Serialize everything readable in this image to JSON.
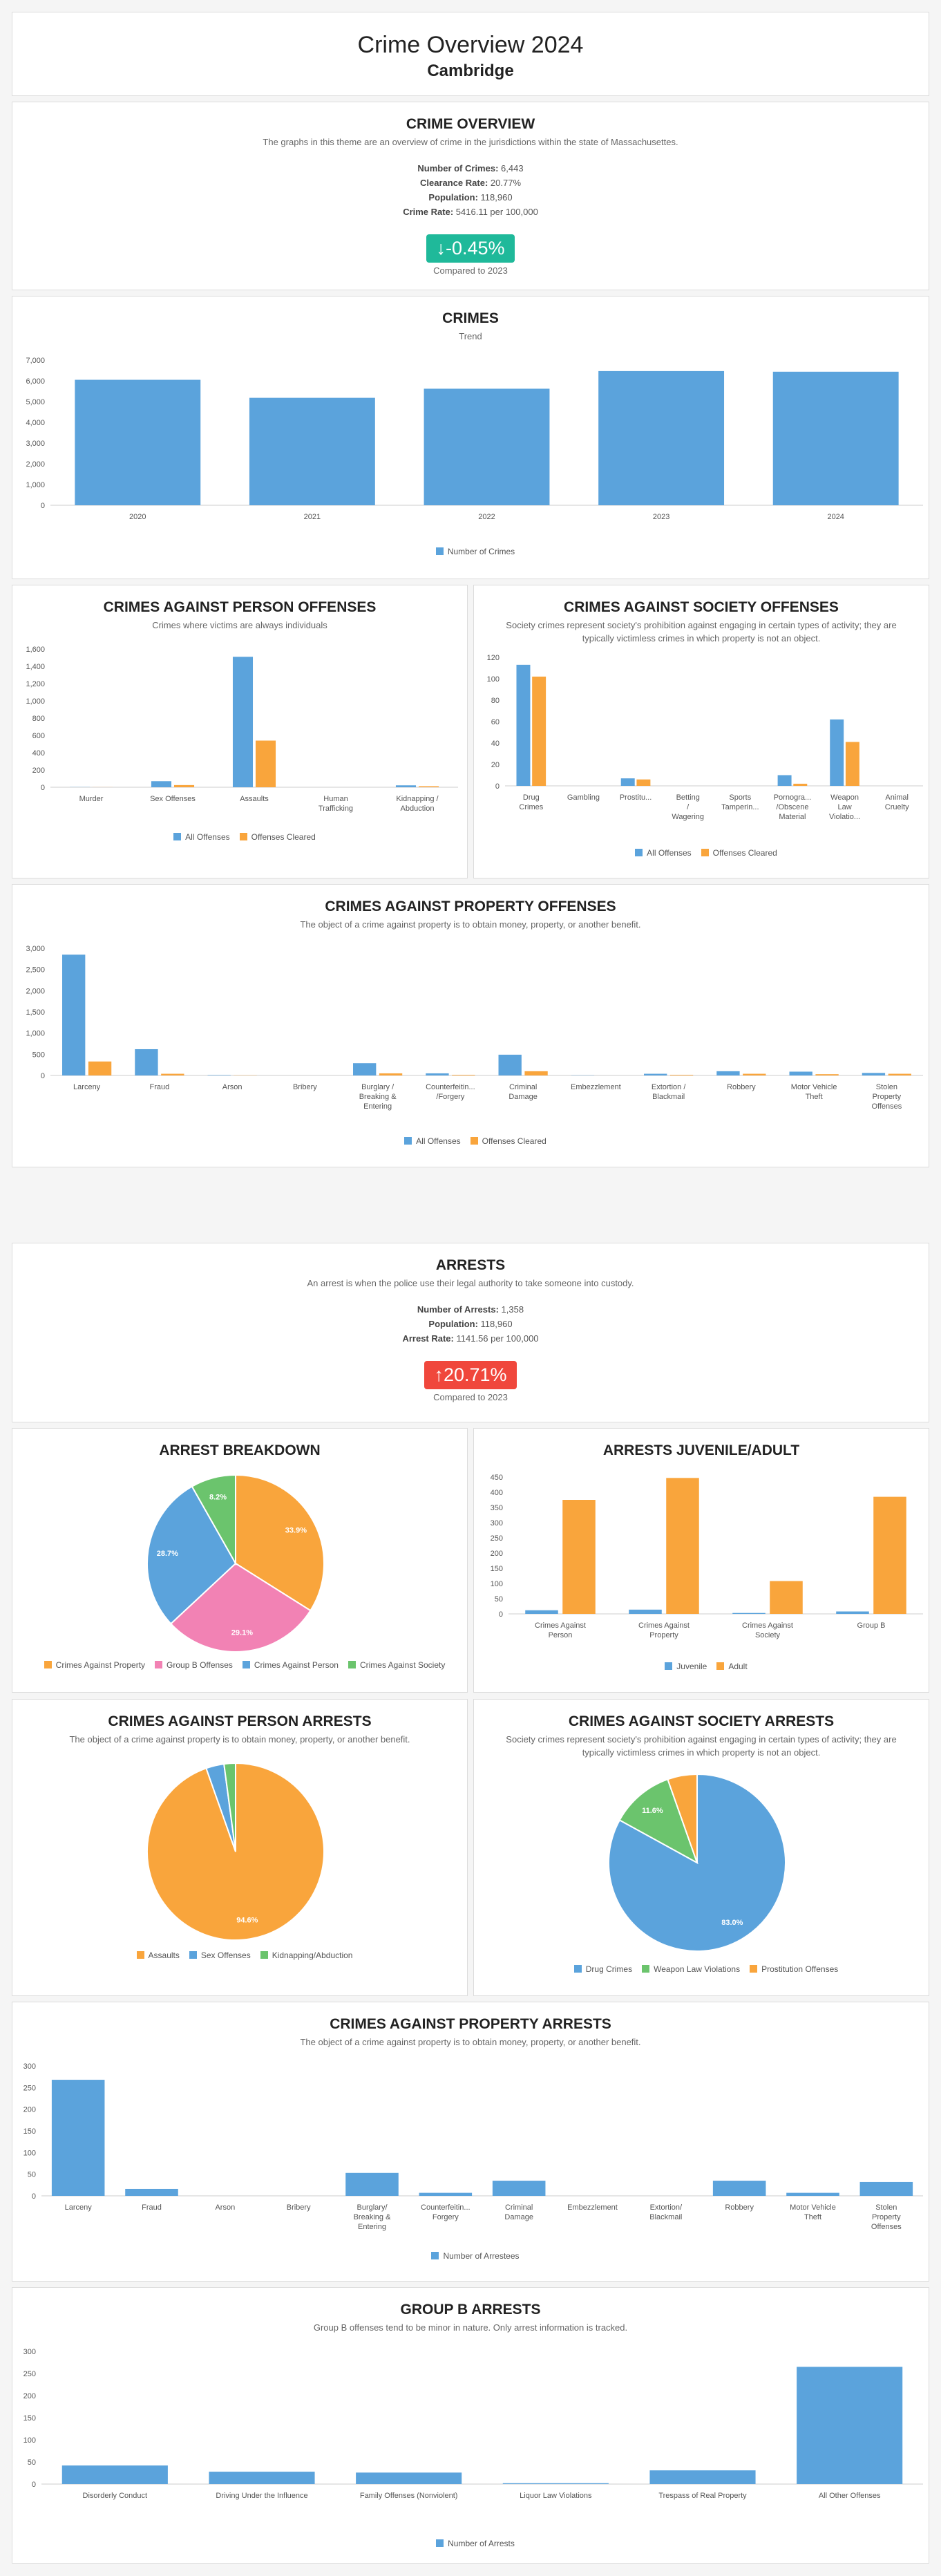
{
  "header": {
    "title": "Crime Overview 2024",
    "subtitle": "Cambridge"
  },
  "colors": {
    "blue": "#5ba3dc",
    "orange": "#f9a53c",
    "pink": "#f282b4",
    "green": "#6bc46d",
    "teal": "#1fb99a",
    "red": "#f0473c"
  },
  "overview": {
    "title": "CRIME OVERVIEW",
    "description": "The graphs in this theme are an overview of crime in the jurisdictions within the state of Massachusettes.",
    "stats": [
      {
        "label": "Number of Crimes:",
        "value": "6,443"
      },
      {
        "label": "Clearance Rate:",
        "value": "20.77%"
      },
      {
        "label": "Population:",
        "value": "118,960"
      },
      {
        "label": "Crime Rate:",
        "value": "5416.11 per 100,000"
      }
    ],
    "change": "-0.45%",
    "compared": "Compared to 2023"
  },
  "arrests": {
    "title": "ARRESTS",
    "description": "An arrest is when the police use their legal authority to take someone into custody.",
    "stats": [
      {
        "label": "Number of Arrests:",
        "value": "1,358"
      },
      {
        "label": "Population:",
        "value": "118,960"
      },
      {
        "label": "Arrest Rate:",
        "value": "1141.56 per 100,000"
      }
    ],
    "change": "20.71%",
    "compared": "Compared to 2023"
  },
  "chart_data": [
    {
      "id": "crimes",
      "type": "bar",
      "title": "CRIMES",
      "subtitle": "Trend",
      "categories": [
        "2020",
        "2021",
        "2022",
        "2023",
        "2024"
      ],
      "series": [
        {
          "name": "Number of Crimes",
          "values": [
            6050,
            5180,
            5620,
            6470,
            6440
          ]
        }
      ],
      "ylim": [
        0,
        7000
      ],
      "yticks": [
        0,
        1000,
        2000,
        3000,
        4000,
        5000,
        6000,
        7000
      ],
      "grid": false,
      "legend": "bottom"
    },
    {
      "id": "person_offenses",
      "type": "bar",
      "title": "CRIMES AGAINST PERSON OFFENSES",
      "subtitle": "Crimes where victims are always individuals",
      "categories": [
        [
          "Murder"
        ],
        [
          "Sex Offenses"
        ],
        [
          "Assaults"
        ],
        [
          "Human",
          "Trafficking"
        ],
        [
          "Kidnapping /",
          "Abduction"
        ]
      ],
      "series": [
        {
          "name": "All Offenses",
          "values": [
            2,
            70,
            1510,
            0,
            22
          ]
        },
        {
          "name": "Offenses Cleared",
          "values": [
            1,
            25,
            540,
            0,
            12
          ]
        }
      ],
      "ylim": [
        0,
        1600
      ],
      "yticks": [
        0,
        200,
        400,
        600,
        800,
        1000,
        1200,
        1400,
        1600
      ],
      "legend": "bottom"
    },
    {
      "id": "society_offenses",
      "type": "bar",
      "title": "CRIMES AGAINST SOCIETY OFFENSES",
      "subtitle": "Society crimes represent society's prohibition against engaging in certain types of activity; they are typically victimless crimes in which property is not an object.",
      "categories": [
        [
          "Drug",
          "Crimes"
        ],
        [
          "Gambling"
        ],
        [
          "Prostitu..."
        ],
        [
          "Betting",
          "/",
          "Wagering"
        ],
        [
          "Sports",
          "Tamperin..."
        ],
        [
          "Pornogra...",
          "/Obscene",
          "Material"
        ],
        [
          "Weapon",
          "Law",
          "Violatio..."
        ],
        [
          "Animal",
          "Cruelty"
        ]
      ],
      "series": [
        {
          "name": "All Offenses",
          "values": [
            113,
            0,
            7,
            0,
            0,
            10,
            62,
            0
          ]
        },
        {
          "name": "Offenses Cleared",
          "values": [
            102,
            0,
            6,
            0,
            0,
            2,
            41,
            0
          ]
        }
      ],
      "ylim": [
        0,
        120
      ],
      "yticks": [
        0,
        20,
        40,
        60,
        80,
        100,
        120
      ],
      "legend": "bottom"
    },
    {
      "id": "property_offenses",
      "type": "bar",
      "title": "CRIMES AGAINST PROPERTY OFFENSES",
      "subtitle": "The object of a crime against property is to obtain money, property, or another benefit.",
      "categories": [
        [
          "Larceny"
        ],
        [
          "Fraud"
        ],
        [
          "Arson"
        ],
        [
          "Bribery"
        ],
        [
          "Burglary /",
          "Breaking &",
          "Entering"
        ],
        [
          "Counterfeitin...",
          "/Forgery"
        ],
        [
          "Criminal",
          "Damage"
        ],
        [
          "Embezzlement"
        ],
        [
          "Extortion /",
          "Blackmail"
        ],
        [
          "Robbery"
        ],
        [
          "Motor Vehicle",
          "Theft"
        ],
        [
          "Stolen",
          "Property",
          "Offenses"
        ]
      ],
      "series": [
        {
          "name": "All Offenses",
          "values": [
            2850,
            620,
            10,
            0,
            290,
            50,
            490,
            5,
            40,
            100,
            90,
            60
          ]
        },
        {
          "name": "Offenses Cleared",
          "values": [
            330,
            40,
            5,
            0,
            50,
            15,
            100,
            0,
            15,
            40,
            30,
            40
          ]
        }
      ],
      "ylim": [
        0,
        3000
      ],
      "yticks": [
        0,
        500,
        1000,
        1500,
        2000,
        2500,
        3000
      ],
      "legend": "bottom"
    },
    {
      "id": "arrest_breakdown",
      "type": "pie",
      "title": "ARREST BREAKDOWN",
      "labels": [
        "Crimes Against Property",
        "Group B Offenses",
        "Crimes Against Person",
        "Crimes Against Society"
      ],
      "values": [
        33.9,
        29.1,
        28.7,
        8.2
      ],
      "display": [
        "33.9%",
        "29.1%",
        "28.7%",
        "8.2%"
      ],
      "legend": "bottom"
    },
    {
      "id": "juvenile_adult",
      "type": "bar",
      "title": "ARRESTS JUVENILE/ADULT",
      "categories": [
        [
          "Crimes Against",
          "Person"
        ],
        [
          "Crimes Against",
          "Property"
        ],
        [
          "Crimes Against",
          "Society"
        ],
        [
          "Group B"
        ]
      ],
      "series": [
        {
          "name": "Juvenile",
          "values": [
            12,
            14,
            3,
            8
          ]
        },
        {
          "name": "Adult",
          "values": [
            375,
            447,
            108,
            385
          ]
        }
      ],
      "ylim": [
        0,
        450
      ],
      "yticks": [
        0,
        50,
        100,
        150,
        200,
        250,
        300,
        350,
        400,
        450
      ],
      "legend": "bottom"
    },
    {
      "id": "person_arrests",
      "type": "pie",
      "title": "CRIMES AGAINST PERSON ARRESTS",
      "subtitle": "The object of a crime against property is to obtain money, property, or another benefit.",
      "labels": [
        "Assaults",
        "Sex Offenses",
        "Kidnapping/Abduction"
      ],
      "values": [
        94.6,
        3.3,
        2.1
      ],
      "display": [
        "94.6%",
        "",
        ""
      ],
      "legend": "bottom"
    },
    {
      "id": "society_arrests",
      "type": "pie",
      "title": "CRIMES AGAINST SOCIETY ARRESTS",
      "subtitle": "Society crimes represent society's prohibition against engaging in certain types of activity; they are typically victimless crimes in which property is not an object.",
      "labels": [
        "Drug Crimes",
        "Weapon Law Violations",
        "Prostitution Offenses"
      ],
      "values": [
        83.0,
        11.6,
        5.4
      ],
      "display": [
        "83.0%",
        "11.6%",
        ""
      ],
      "legend": "bottom"
    },
    {
      "id": "property_arrests",
      "type": "bar",
      "title": "CRIMES AGAINST PROPERTY ARRESTS",
      "subtitle": "The object of a crime against property is to obtain money, property, or another benefit.",
      "categories": [
        [
          "Larceny"
        ],
        [
          "Fraud"
        ],
        [
          "Arson"
        ],
        [
          "Bribery"
        ],
        [
          "Burglary/",
          "Breaking &",
          "Entering"
        ],
        [
          "Counterfeitin...",
          "Forgery"
        ],
        [
          "Criminal",
          "Damage"
        ],
        [
          "Embezzlement"
        ],
        [
          "Extortion/",
          "Blackmail"
        ],
        [
          "Robbery"
        ],
        [
          "Motor Vehicle",
          "Theft"
        ],
        [
          "Stolen",
          "Property",
          "Offenses"
        ]
      ],
      "series": [
        {
          "name": "Number of Arrestees",
          "values": [
            268,
            16,
            0,
            0,
            53,
            7,
            35,
            0,
            0,
            35,
            7,
            32
          ]
        }
      ],
      "ylim": [
        0,
        300
      ],
      "yticks": [
        0,
        50,
        100,
        150,
        200,
        250,
        300
      ],
      "legend": "bottom"
    },
    {
      "id": "group_b",
      "type": "bar",
      "title": "GROUP B ARRESTS",
      "subtitle": "Group B offenses tend to be minor in nature. Only arrest information is tracked.",
      "categories": [
        [
          "Disorderly Conduct"
        ],
        [
          "Driving Under the Influence"
        ],
        [
          "Family Offenses (Nonviolent)"
        ],
        [
          "Liquor Law Violations"
        ],
        [
          "Trespass of Real Property"
        ],
        [
          "All Other Offenses"
        ]
      ],
      "series": [
        {
          "name": "Number of Arrests",
          "values": [
            42,
            28,
            26,
            2,
            31,
            265
          ]
        }
      ],
      "ylim": [
        0,
        300
      ],
      "yticks": [
        0,
        50,
        100,
        150,
        200,
        250,
        300
      ],
      "legend": "bottom"
    }
  ]
}
